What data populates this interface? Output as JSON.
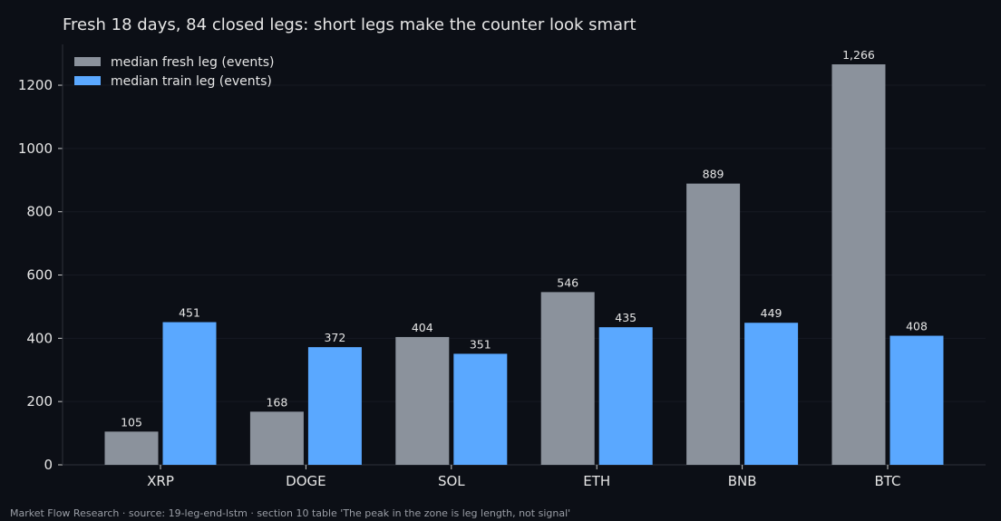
{
  "chart_data": {
    "type": "bar",
    "title": "Fresh 18 days, 84 closed legs: short legs make the counter look smart",
    "categories": [
      "XRP",
      "DOGE",
      "SOL",
      "ETH",
      "BNB",
      "BTC"
    ],
    "series": [
      {
        "name": "median fresh leg (events)",
        "color": "#8b929c",
        "values": [
          105,
          168,
          404,
          546,
          889,
          1266
        ],
        "labels": [
          "105",
          "168",
          "404",
          "546",
          "889",
          "1,266"
        ]
      },
      {
        "name": "median train leg (events)",
        "color": "#5aa8ff",
        "values": [
          451,
          372,
          351,
          435,
          449,
          408
        ],
        "labels": [
          "451",
          "372",
          "351",
          "435",
          "449",
          "408"
        ]
      }
    ],
    "yticks": [
      0,
      200,
      400,
      600,
      800,
      1000,
      1200
    ],
    "ylim": [
      0,
      1329
    ],
    "grid": true,
    "legend_position": "top-left"
  },
  "footer": "Market Flow Research · source: 19-leg-end-lstm · section 10 table 'The peak in the zone is leg length, not signal'"
}
